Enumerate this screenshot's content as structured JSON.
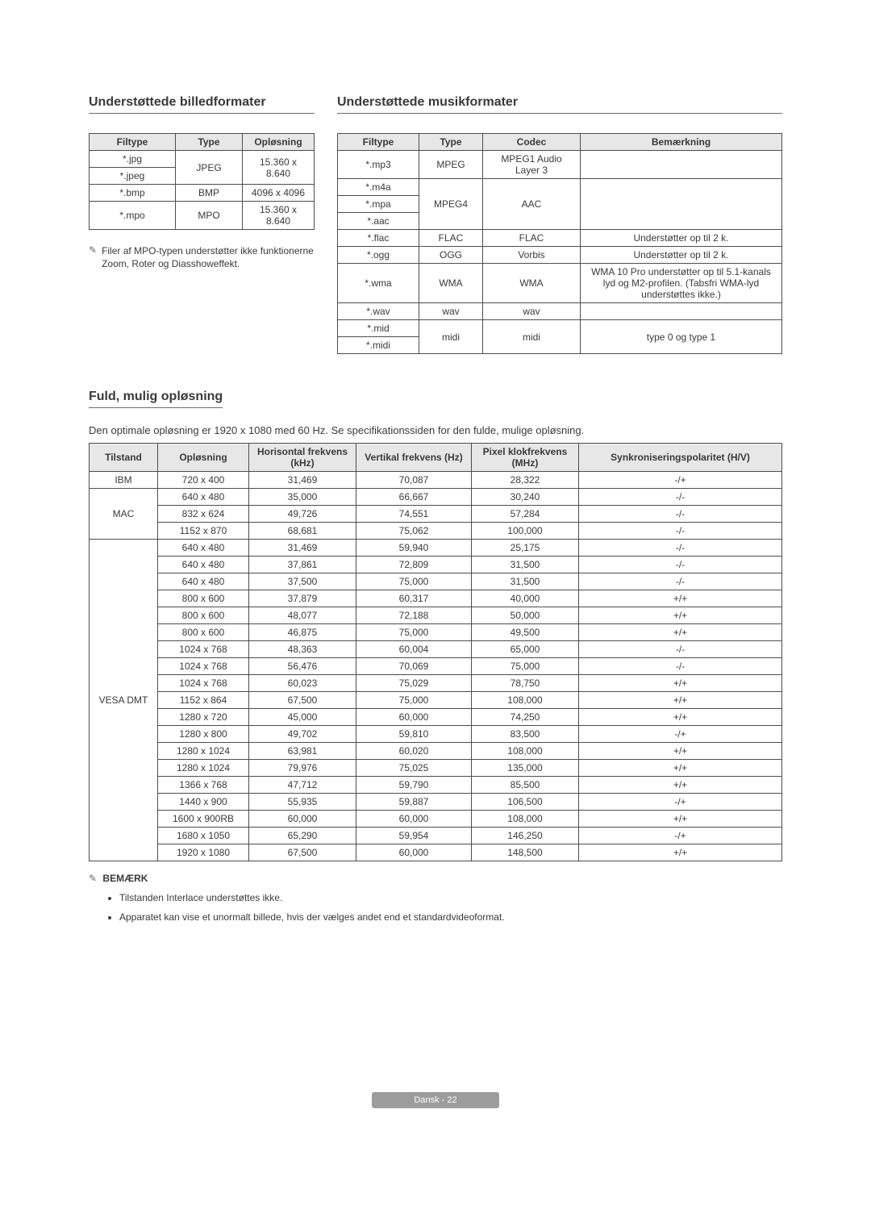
{
  "sections": {
    "image_formats_title": "Understøttede billedformater",
    "music_formats_title": "Understøttede musikformater",
    "full_res_title": "Fuld, mulig opløsning",
    "full_res_intro": "Den optimale opløsning er 1920 x 1080 med 60 Hz. Se specifikationssiden for den fulde, mulige opløsning."
  },
  "image_table": {
    "headers": [
      "Filtype",
      "Type",
      "Opløsning"
    ],
    "rows": [
      {
        "filetype_lines": [
          "*.jpg",
          "*.jpeg"
        ],
        "type": "JPEG",
        "res": "15.360 x 8.640"
      },
      {
        "filetype_lines": [
          "*.bmp"
        ],
        "type": "BMP",
        "res": "4096 x 4096"
      },
      {
        "filetype_lines": [
          "*.mpo"
        ],
        "type": "MPO",
        "res": "15.360 x 8.640"
      }
    ]
  },
  "image_note": "Filer af MPO-typen understøtter ikke funktionerne Zoom, Roter og Diasshoweffekt.",
  "music_table": {
    "headers": [
      "Filtype",
      "Type",
      "Codec",
      "Bemærkning"
    ],
    "rows": [
      {
        "filetype_lines": [
          "*.mp3"
        ],
        "type": "MPEG",
        "codec": "MPEG1 Audio Layer 3",
        "remark": ""
      },
      {
        "filetype_lines": [
          "*.m4a",
          "*.mpa",
          "*.aac"
        ],
        "type": "MPEG4",
        "codec": "AAC",
        "remark": ""
      },
      {
        "filetype_lines": [
          "*.flac"
        ],
        "type": "FLAC",
        "codec": "FLAC",
        "remark": "Understøtter op til 2 k."
      },
      {
        "filetype_lines": [
          "*.ogg"
        ],
        "type": "OGG",
        "codec": "Vorbis",
        "remark": "Understøtter op til 2 k."
      },
      {
        "filetype_lines": [
          "*.wma"
        ],
        "type": "WMA",
        "codec": "WMA",
        "remark": "WMA 10 Pro understøtter op til 5.1-kanals lyd og M2-profilen. (Tabsfri WMA-lyd understøttes ikke.)"
      },
      {
        "filetype_lines": [
          "*.wav"
        ],
        "type": "wav",
        "codec": "wav",
        "remark": ""
      },
      {
        "filetype_lines": [
          "*.mid",
          "*.midi"
        ],
        "type": "midi",
        "codec": "midi",
        "remark": "type 0 og type 1"
      }
    ]
  },
  "res_table": {
    "headers": [
      "Tilstand",
      "Opløsning",
      "Horisontal frekvens (kHz)",
      "Vertikal frekvens (Hz)",
      "Pixel klokfrekvens (MHz)",
      "Synkroniseringspolaritet (H/V)"
    ],
    "groups": [
      {
        "mode": "IBM",
        "rows": [
          [
            "720 x 400",
            "31,469",
            "70,087",
            "28,322",
            "-/+"
          ]
        ]
      },
      {
        "mode": "MAC",
        "rows": [
          [
            "640 x 480",
            "35,000",
            "66,667",
            "30,240",
            "-/-"
          ],
          [
            "832 x 624",
            "49,726",
            "74,551",
            "57,284",
            "-/-"
          ],
          [
            "1152 x 870",
            "68,681",
            "75,062",
            "100,000",
            "-/-"
          ]
        ]
      },
      {
        "mode": "VESA DMT",
        "rows": [
          [
            "640 x 480",
            "31,469",
            "59,940",
            "25,175",
            "-/-"
          ],
          [
            "640 x 480",
            "37,861",
            "72,809",
            "31,500",
            "-/-"
          ],
          [
            "640 x 480",
            "37,500",
            "75,000",
            "31,500",
            "-/-"
          ],
          [
            "800 x 600",
            "37,879",
            "60,317",
            "40,000",
            "+/+"
          ],
          [
            "800 x 600",
            "48,077",
            "72,188",
            "50,000",
            "+/+"
          ],
          [
            "800 x 600",
            "46,875",
            "75,000",
            "49,500",
            "+/+"
          ],
          [
            "1024 x 768",
            "48,363",
            "60,004",
            "65,000",
            "-/-"
          ],
          [
            "1024 x 768",
            "56,476",
            "70,069",
            "75,000",
            "-/-"
          ],
          [
            "1024 x 768",
            "60,023",
            "75,029",
            "78,750",
            "+/+"
          ],
          [
            "1152 x 864",
            "67,500",
            "75,000",
            "108,000",
            "+/+"
          ],
          [
            "1280 x 720",
            "45,000",
            "60,000",
            "74,250",
            "+/+"
          ],
          [
            "1280 x 800",
            "49,702",
            "59,810",
            "83,500",
            "-/+"
          ],
          [
            "1280 x 1024",
            "63,981",
            "60,020",
            "108,000",
            "+/+"
          ],
          [
            "1280 x 1024",
            "79,976",
            "75,025",
            "135,000",
            "+/+"
          ],
          [
            "1366 x 768",
            "47,712",
            "59,790",
            "85,500",
            "+/+"
          ],
          [
            "1440 x 900",
            "55,935",
            "59,887",
            "106,500",
            "-/+"
          ],
          [
            "1600 x 900RB",
            "60,000",
            "60,000",
            "108,000",
            "+/+"
          ],
          [
            "1680 x 1050",
            "65,290",
            "59,954",
            "146,250",
            "-/+"
          ],
          [
            "1920 x 1080",
            "67,500",
            "60,000",
            "148,500",
            "+/+"
          ]
        ]
      }
    ]
  },
  "bemark": {
    "title": "BEMÆRK",
    "items": [
      "Tilstanden Interlace understøttes ikke.",
      "Apparatet kan vise et unormalt billede, hvis der vælges andet end et standardvideoformat."
    ]
  },
  "footer": {
    "text": "Dansk - 22"
  }
}
